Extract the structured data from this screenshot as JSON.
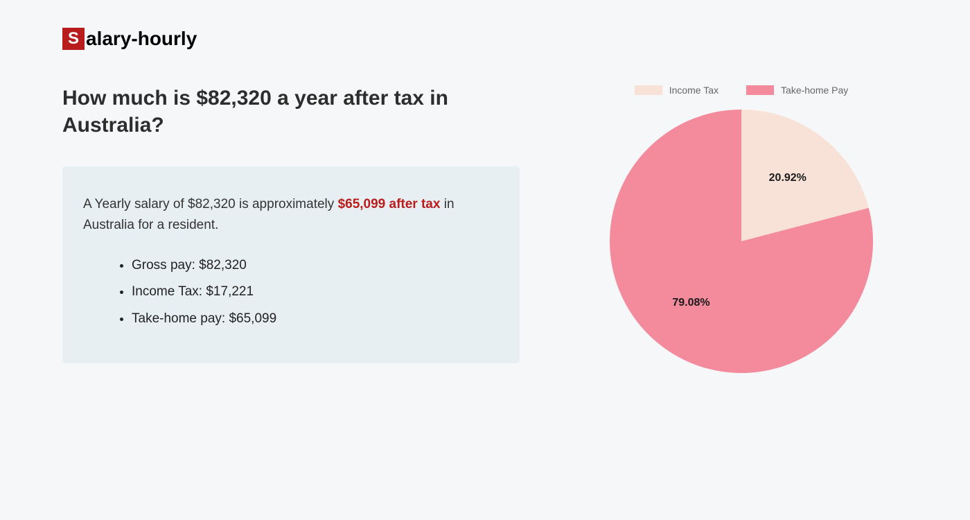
{
  "logo": {
    "initial": "S",
    "rest": "alary-hourly"
  },
  "heading": "How much is $82,320 a year after tax in Australia?",
  "summary": {
    "pre": "A Yearly salary of $82,320 is approximately ",
    "highlight": "$65,099 after tax",
    "post": " in Australia for a resident."
  },
  "details": [
    "Gross pay: $82,320",
    "Income Tax: $17,221",
    "Take-home pay: $65,099"
  ],
  "chart": {
    "type": "pie",
    "radius": 190,
    "background_color": "#f5f7f9",
    "slices": [
      {
        "label": "Income Tax",
        "value": 20.92,
        "color": "#f8e2d8",
        "display": "20.92%"
      },
      {
        "label": "Take-home Pay",
        "value": 79.08,
        "color": "#f38b9d",
        "display": "79.08%"
      }
    ],
    "legend_text_color": "#666666",
    "label_text_color": "#1a1a1a",
    "label_fontsize": 16,
    "label_fontweight": 700
  }
}
